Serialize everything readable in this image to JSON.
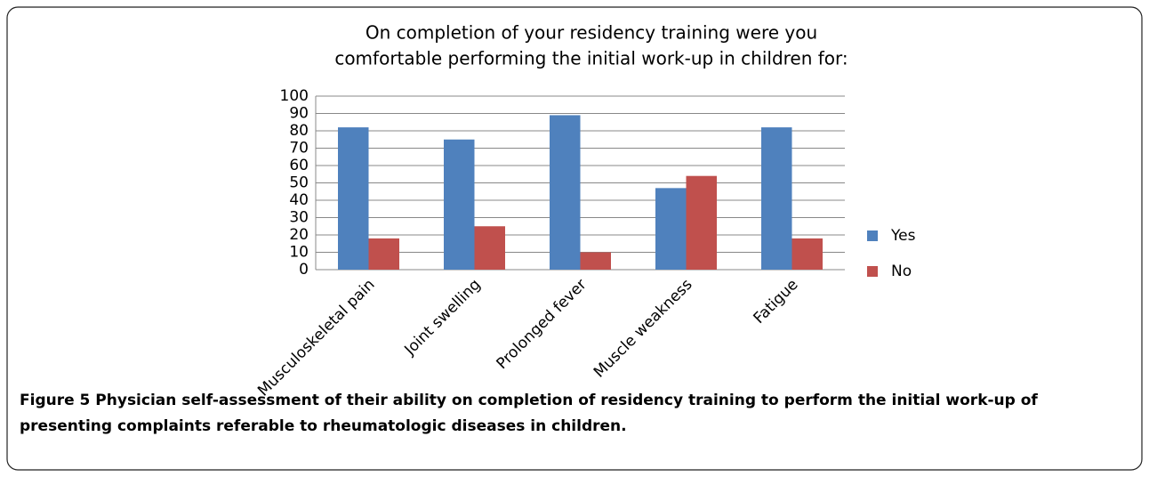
{
  "chart_data": {
    "type": "bar",
    "title": [
      "On completion of your residency training were you",
      "comfortable performing the initial work-up in children for:"
    ],
    "categories": [
      "Musculoskeletal pain",
      "Joint swelling",
      "Prolonged fever",
      "Muscle weakness",
      "Fatigue"
    ],
    "series": [
      {
        "name": "Yes",
        "color": "#4f81bd",
        "values": [
          82,
          75,
          89,
          47,
          82
        ]
      },
      {
        "name": "No",
        "color": "#c0504d",
        "values": [
          18,
          25,
          10,
          54,
          18
        ]
      }
    ],
    "ylim": [
      0,
      100
    ],
    "yticks": [
      0,
      10,
      20,
      30,
      40,
      50,
      60,
      70,
      80,
      90,
      100
    ],
    "grid": true,
    "legend": "right"
  },
  "caption": {
    "label": "Figure 5",
    "text": "Physician self-assessment of their ability on completion of residency training to perform the initial work-up of presenting complaints referable to rheumatologic diseases in children."
  }
}
